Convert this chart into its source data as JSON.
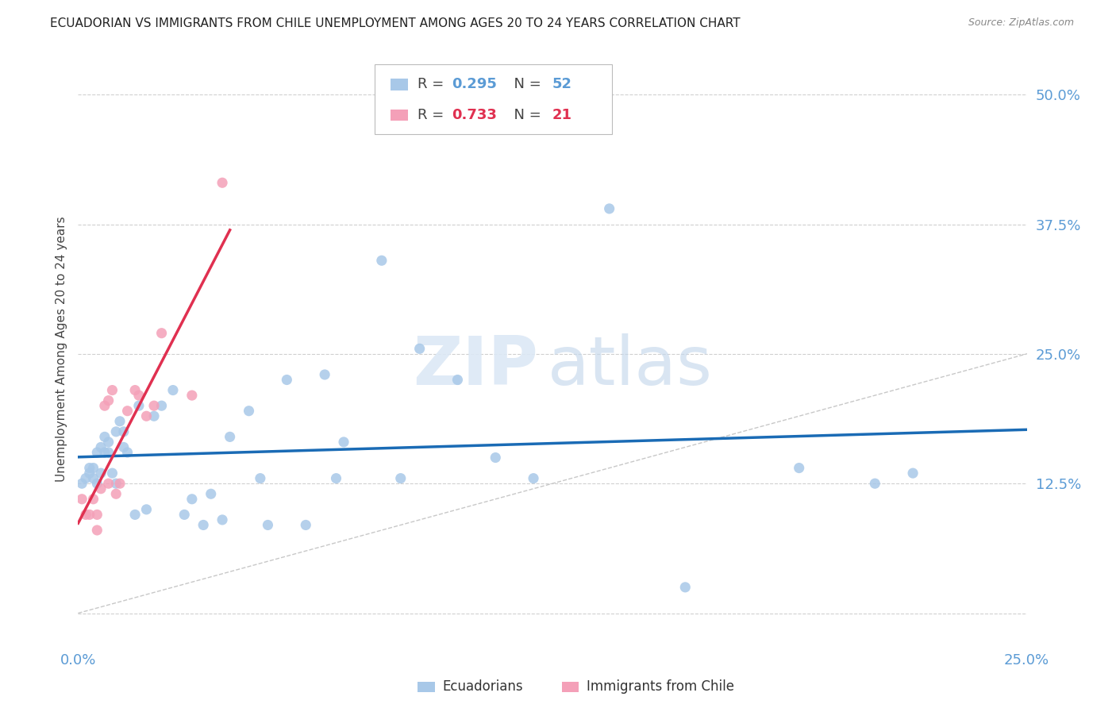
{
  "title": "ECUADORIAN VS IMMIGRANTS FROM CHILE UNEMPLOYMENT AMONG AGES 20 TO 24 YEARS CORRELATION CHART",
  "source": "Source: ZipAtlas.com",
  "ylabel": "Unemployment Among Ages 20 to 24 years",
  "xlim": [
    0.0,
    0.25
  ],
  "ylim": [
    -0.03,
    0.54
  ],
  "r_ecu": 0.295,
  "n_ecu": 52,
  "r_chile": 0.733,
  "n_chile": 21,
  "color_ecu": "#a8c8e8",
  "color_chile": "#f4a0b8",
  "line_color_ecu": "#1a6bb5",
  "line_color_chile": "#e03050",
  "ecu_x": [
    0.001,
    0.002,
    0.003,
    0.003,
    0.004,
    0.004,
    0.005,
    0.005,
    0.006,
    0.006,
    0.007,
    0.007,
    0.008,
    0.008,
    0.009,
    0.01,
    0.01,
    0.011,
    0.012,
    0.012,
    0.013,
    0.015,
    0.016,
    0.018,
    0.02,
    0.022,
    0.025,
    0.028,
    0.03,
    0.033,
    0.035,
    0.038,
    0.04,
    0.045,
    0.048,
    0.05,
    0.055,
    0.06,
    0.065,
    0.068,
    0.07,
    0.08,
    0.085,
    0.09,
    0.1,
    0.11,
    0.12,
    0.14,
    0.16,
    0.19,
    0.21,
    0.22
  ],
  "ecu_y": [
    0.125,
    0.13,
    0.14,
    0.135,
    0.14,
    0.13,
    0.155,
    0.125,
    0.16,
    0.135,
    0.155,
    0.17,
    0.155,
    0.165,
    0.135,
    0.125,
    0.175,
    0.185,
    0.16,
    0.175,
    0.155,
    0.095,
    0.2,
    0.1,
    0.19,
    0.2,
    0.215,
    0.095,
    0.11,
    0.085,
    0.115,
    0.09,
    0.17,
    0.195,
    0.13,
    0.085,
    0.225,
    0.085,
    0.23,
    0.13,
    0.165,
    0.34,
    0.13,
    0.255,
    0.225,
    0.15,
    0.13,
    0.39,
    0.025,
    0.14,
    0.125,
    0.135
  ],
  "chile_x": [
    0.001,
    0.002,
    0.003,
    0.004,
    0.005,
    0.005,
    0.006,
    0.007,
    0.008,
    0.008,
    0.009,
    0.01,
    0.011,
    0.013,
    0.015,
    0.016,
    0.018,
    0.02,
    0.022,
    0.03,
    0.038
  ],
  "chile_y": [
    0.11,
    0.095,
    0.095,
    0.11,
    0.095,
    0.08,
    0.12,
    0.2,
    0.205,
    0.125,
    0.215,
    0.115,
    0.125,
    0.195,
    0.215,
    0.21,
    0.19,
    0.2,
    0.27,
    0.21,
    0.415
  ]
}
